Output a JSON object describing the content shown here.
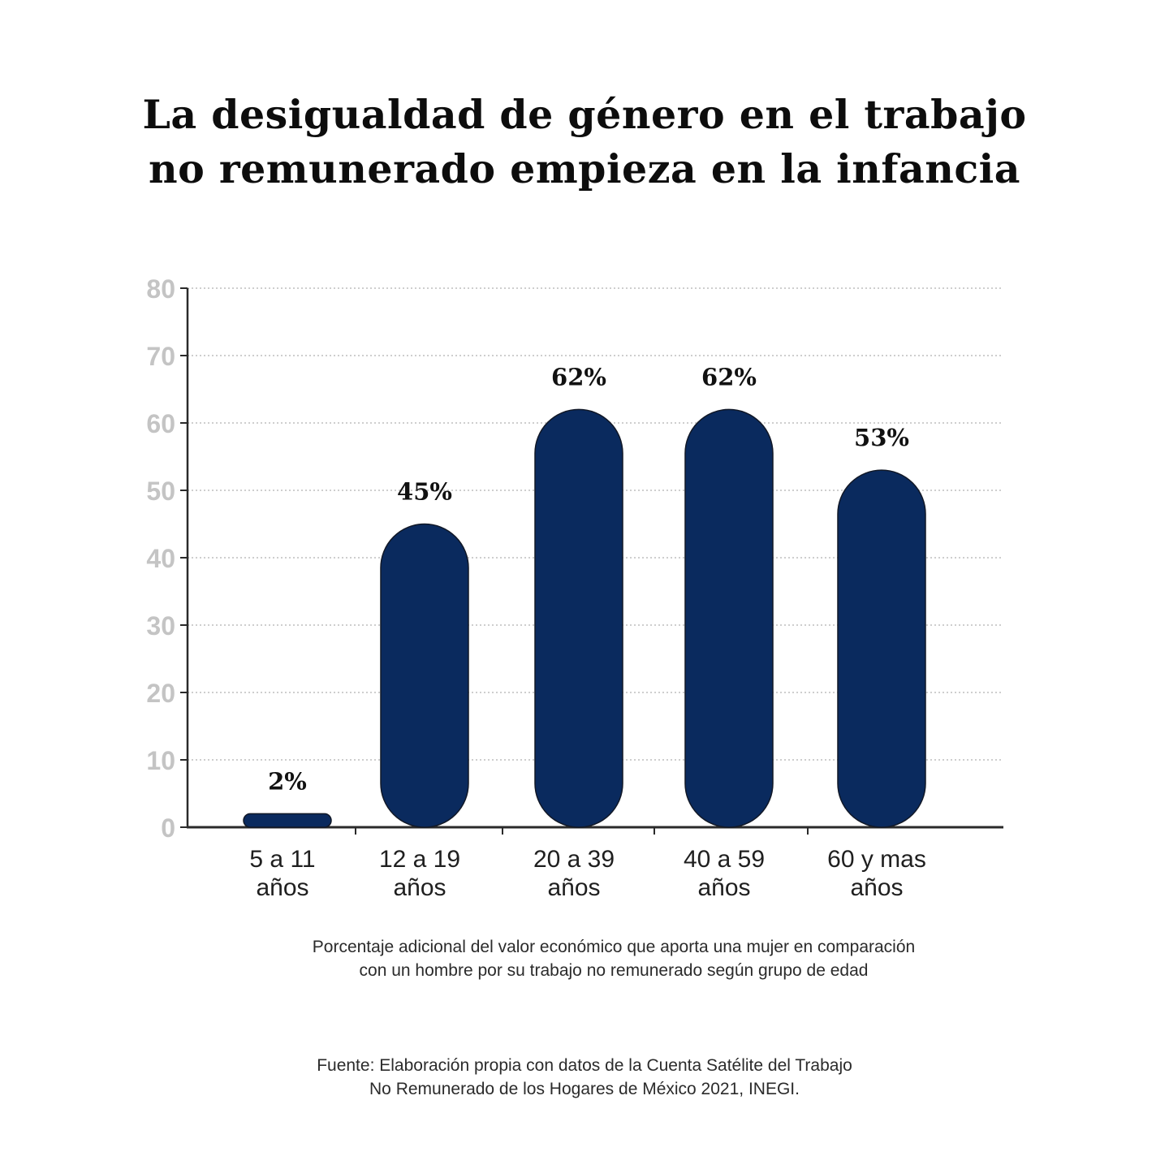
{
  "title": {
    "line1": "La desigualdad de género en el trabajo",
    "line2": "no remunerado empieza en la infancia"
  },
  "caption": {
    "line1": "Porcentaje adicional del valor económico que aporta una mujer en comparación",
    "line2": "con un hombre por su trabajo no remunerado según grupo de edad"
  },
  "source": {
    "line1": "Fuente: Elaboración propia con datos de la Cuenta Satélite del Trabajo",
    "line2": "No Remunerado de los Hogares de México 2021, INEGI."
  },
  "chart_data": {
    "type": "bar",
    "categories": [
      [
        "5 a 11",
        "años"
      ],
      [
        "12 a 19",
        "años"
      ],
      [
        "20 a 39",
        "años"
      ],
      [
        "40 a 59",
        "años"
      ],
      [
        "60 y mas",
        "años"
      ]
    ],
    "values": [
      2,
      45,
      62,
      62,
      53
    ],
    "data_labels": [
      "2%",
      "45%",
      "62%",
      "62%",
      "53%"
    ],
    "ylim": [
      0,
      80
    ],
    "yticks": [
      0,
      10,
      20,
      30,
      40,
      50,
      60,
      70,
      80
    ],
    "grid": true,
    "grid_style": "dotted",
    "bar_color": "#0a2a5e",
    "axis_color": "#2a2a2a",
    "tick_label_color": "#c4c4c4",
    "grid_color": "#bdbdbd"
  }
}
